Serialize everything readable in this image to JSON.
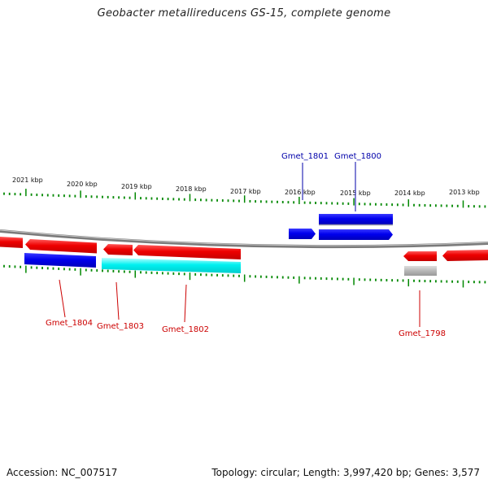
{
  "title": "Geobacter metallireducens GS-15, complete genome",
  "footer": {
    "accession": "Accession: NC_007517",
    "summary": "Topology: circular; Length: 3,997,420 bp; Genes: 3,577"
  },
  "colors": {
    "forward_gene": "#0000ee",
    "reverse_gene": "#ee0000",
    "rna_gene": "#00eeee",
    "pseudo_gene": "#aaaaaa",
    "tick": "#008800",
    "backbone": "#888888",
    "label_forward": "#0000aa",
    "label_reverse": "#cc0000"
  },
  "scale_ticks": [
    {
      "label": "2021 kbp"
    },
    {
      "label": "2020 kbp"
    },
    {
      "label": "2019 kbp"
    },
    {
      "label": "2018 kbp"
    },
    {
      "label": "2017 kbp"
    },
    {
      "label": "2016 kbp"
    },
    {
      "label": "2015 kbp"
    },
    {
      "label": "2014 kbp"
    },
    {
      "label": "2013 kbp"
    }
  ],
  "gene_labels": [
    {
      "name": "Gmet_1801",
      "strand": "forward"
    },
    {
      "name": "Gmet_1800",
      "strand": "forward"
    },
    {
      "name": "Gmet_1804",
      "strand": "reverse"
    },
    {
      "name": "Gmet_1803",
      "strand": "reverse"
    },
    {
      "name": "Gmet_1802",
      "strand": "reverse"
    },
    {
      "name": "Gmet_1798",
      "strand": "reverse"
    }
  ]
}
